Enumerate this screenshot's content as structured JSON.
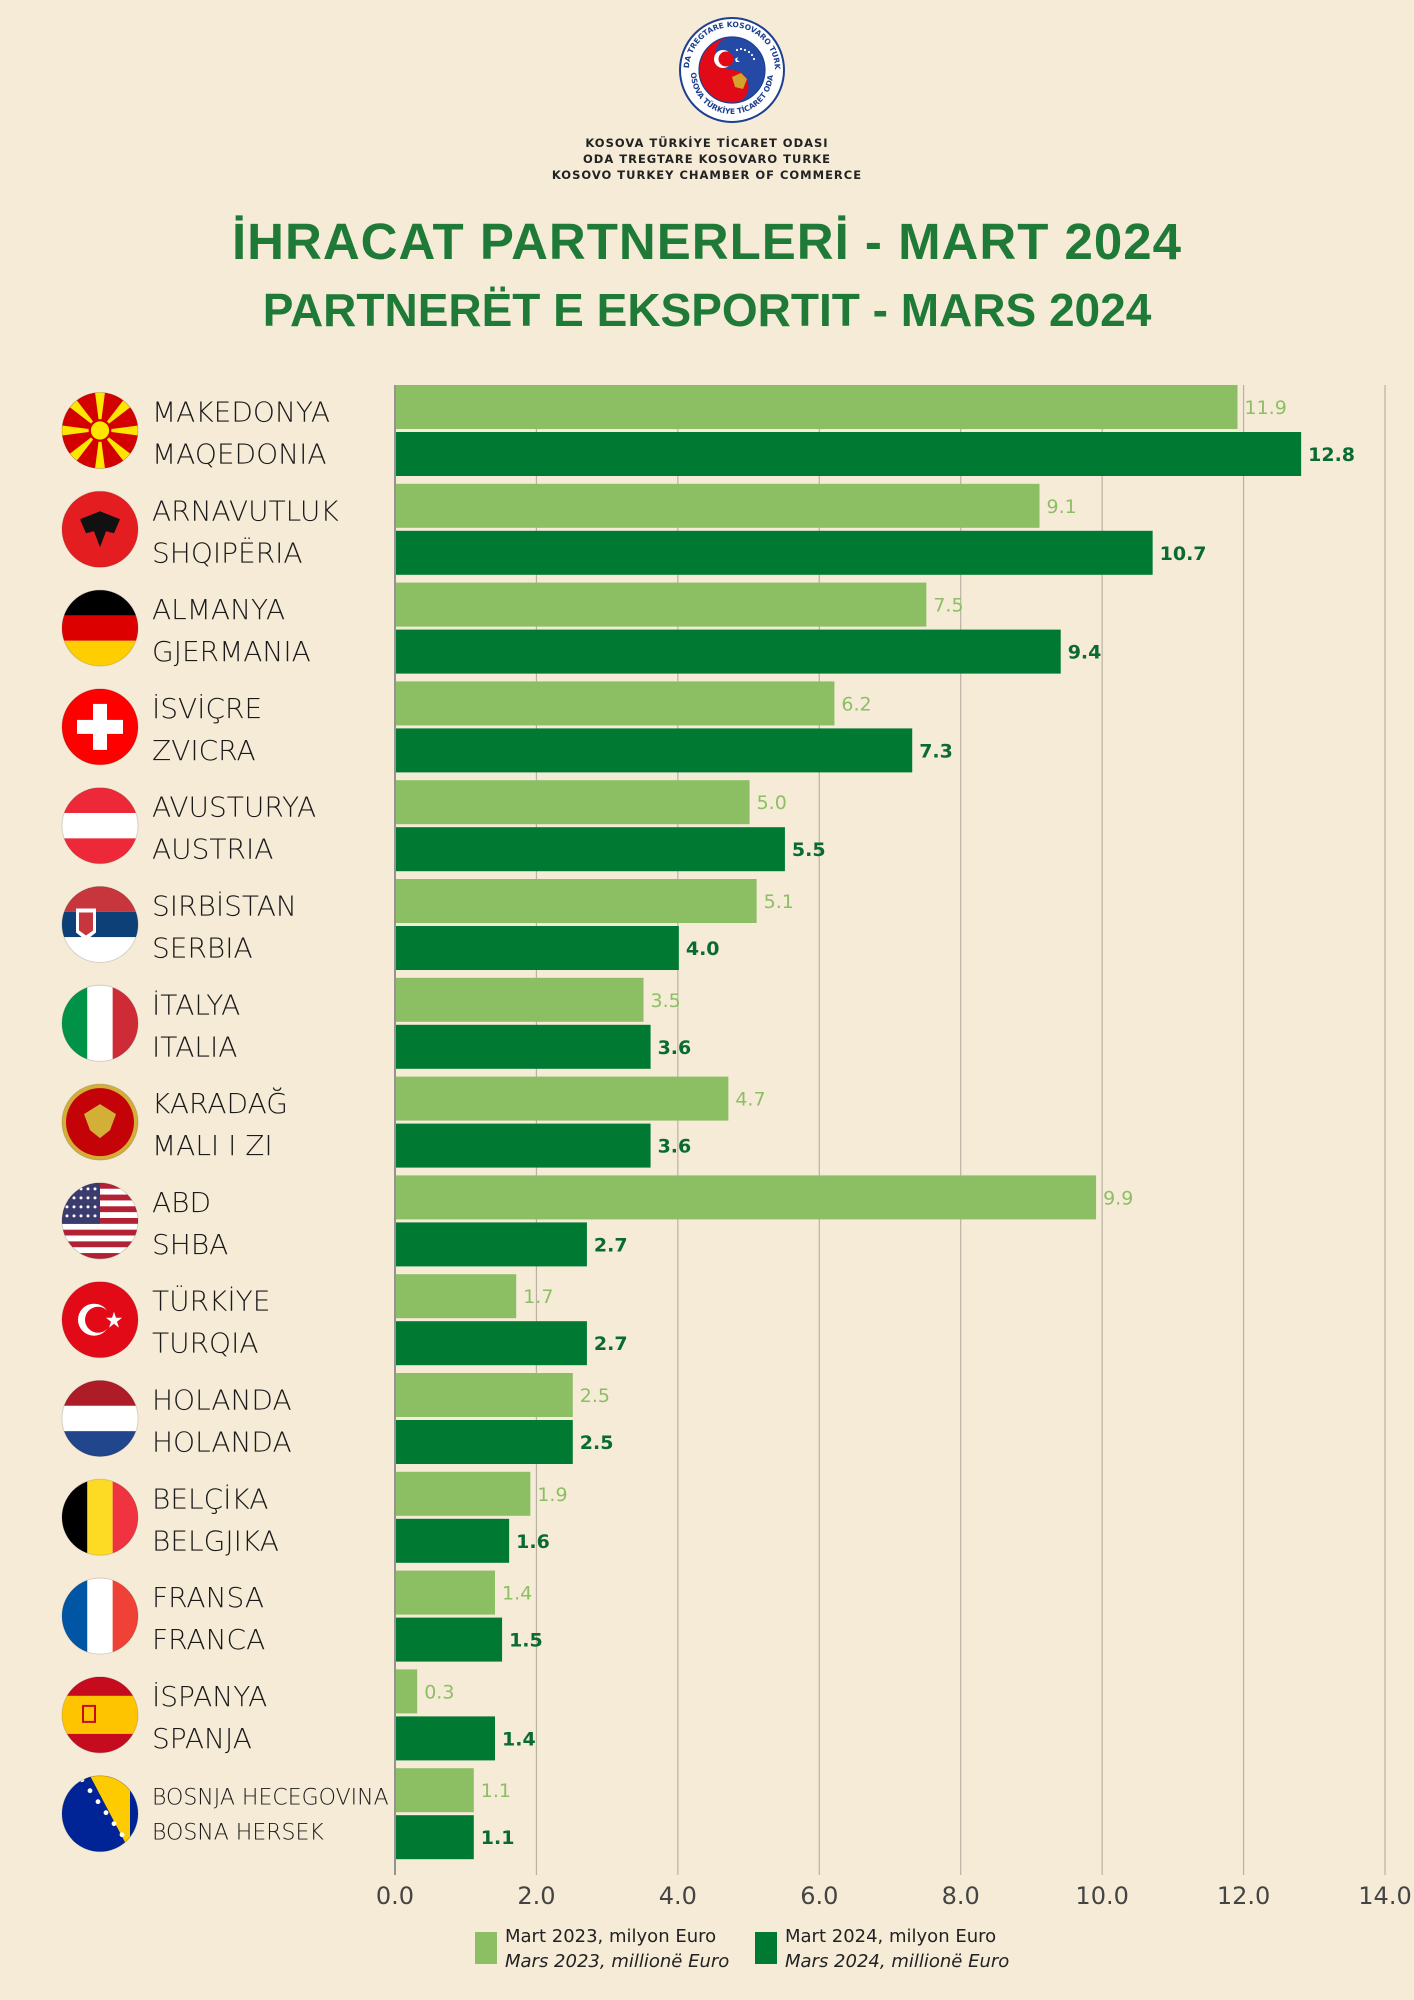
{
  "organization": {
    "lines": [
      "KOSOVA TÜRKİYE TİCARET ODASI",
      "ODA TREGTARE KOSOVARO TURKE",
      "KOSOVO TURKEY CHAMBER OF COMMERCE"
    ],
    "logo_ring_top": "ODA TREGTARE KOSOVARO TURKE",
    "logo_ring_bottom": "KOSOVA TÜRKİYE TİCARET ODASI"
  },
  "chart_data": {
    "type": "bar",
    "orientation": "horizontal",
    "title": "İHRACAT PARTNERLERİ - MART 2024",
    "subtitle": "PARTNERËT E EKSPORTIT - MARS 2024",
    "categories": [
      {
        "tr": "MAKEDONYA",
        "sq": "MAQEDONIA",
        "flag": "north-macedonia-flag-icon"
      },
      {
        "tr": "ARNAVUTLUK",
        "sq": "SHQIPËRIA",
        "flag": "albania-flag-icon"
      },
      {
        "tr": "ALMANYA",
        "sq": "GJERMANIA",
        "flag": "germany-flag-icon"
      },
      {
        "tr": "İSVİÇRE",
        "sq": "ZVICRA",
        "flag": "switzerland-flag-icon"
      },
      {
        "tr": "AVUSTURYA",
        "sq": "AUSTRIA",
        "flag": "austria-flag-icon"
      },
      {
        "tr": "SIRBİSTAN",
        "sq": "SERBIA",
        "flag": "serbia-flag-icon"
      },
      {
        "tr": "İTALYA",
        "sq": "ITALIA",
        "flag": "italy-flag-icon"
      },
      {
        "tr": "KARADAĞ",
        "sq": "MALI I ZI",
        "flag": "montenegro-flag-icon"
      },
      {
        "tr": "ABD",
        "sq": "SHBA",
        "flag": "usa-flag-icon"
      },
      {
        "tr": "TÜRKİYE",
        "sq": "TURQIA",
        "flag": "turkey-flag-icon"
      },
      {
        "tr": "HOLANDA",
        "sq": "HOLANDA",
        "flag": "netherlands-flag-icon"
      },
      {
        "tr": "BELÇİKA",
        "sq": "BELGJIKA",
        "flag": "belgium-flag-icon"
      },
      {
        "tr": "FRANSA",
        "sq": "FRANCA",
        "flag": "france-flag-icon"
      },
      {
        "tr": "İSPANYA",
        "sq": "SPANJA",
        "flag": "spain-flag-icon"
      },
      {
        "tr": "BOSNJA HECEGOVINA",
        "sq": "BOSNA HERSEK",
        "flag": "bosnia-flag-icon"
      }
    ],
    "series": [
      {
        "name": "Mart 2023, milyon Euro",
        "name_alt": "Mars 2023, millionë Euro",
        "color": "#8cbf63",
        "values": [
          11.9,
          9.1,
          7.5,
          6.2,
          5.0,
          5.1,
          3.5,
          4.7,
          9.9,
          1.7,
          2.5,
          1.9,
          1.4,
          0.3,
          1.1
        ],
        "labels": [
          "11.9",
          "9.1",
          "7.5",
          "6.2",
          "5.0",
          "5.1",
          "3.5",
          "4.7",
          "9.9",
          "1.7",
          "2.5",
          "1.9",
          "1.4",
          "0.3",
          "1.1"
        ]
      },
      {
        "name": "Mart 2024, milyon Euro",
        "name_alt": "Mars 2024, millionë Euro",
        "color": "#007a33",
        "values": [
          12.8,
          10.7,
          9.4,
          7.3,
          5.5,
          4.0,
          3.6,
          3.6,
          2.7,
          2.7,
          2.5,
          1.6,
          1.5,
          1.4,
          1.1
        ],
        "labels": [
          "12.8",
          "10.7",
          "9.4",
          "7.3",
          "5.5",
          "4.0",
          "3.6",
          "3.6",
          "2.7",
          "2.7",
          "2.5",
          "1.6",
          "1.5",
          "1.4",
          "1.1"
        ]
      }
    ],
    "xlim": [
      0,
      14
    ],
    "xticks": [
      "0.0",
      "2.0",
      "4.0",
      "6.0",
      "8.0",
      "10.0",
      "12.0",
      "14.0"
    ],
    "grid": "vertical",
    "legend": "bottom"
  }
}
